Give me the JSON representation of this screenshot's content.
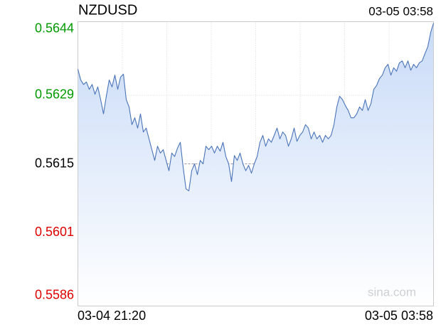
{
  "chart_data": {
    "type": "line",
    "title": "NZDUSD",
    "time": "03-05 03:58",
    "watermark": "sina.com",
    "x_axis_labels": [
      "03-04 21:20",
      "03-05 03:58"
    ],
    "ylim": [
      0.5586,
      0.5644
    ],
    "yticks": [
      0.5586,
      0.5601,
      0.5615,
      0.5629,
      0.5644
    ],
    "reference": 0.5615,
    "colors": {
      "line": "#4a74b8",
      "fill": "#c6d9f7",
      "up": "#009900",
      "down": "#dd0000",
      "flat": "#000000"
    },
    "grid": true,
    "values": [
      0.56343,
      0.56321,
      0.56312,
      0.56317,
      0.56302,
      0.56312,
      0.56292,
      0.56307,
      0.56281,
      0.56252,
      0.56288,
      0.56321,
      0.56307,
      0.56331,
      0.56302,
      0.56327,
      0.56333,
      0.56281,
      0.56266,
      0.5623,
      0.56244,
      0.56223,
      0.56252,
      0.56215,
      0.56223,
      0.56201,
      0.56179,
      0.56157,
      0.56186,
      0.56172,
      0.56179,
      0.56157,
      0.56136,
      0.56172,
      0.56165,
      0.56182,
      0.56194,
      0.56143,
      0.56099,
      0.56095,
      0.56136,
      0.5615,
      0.56128,
      0.56157,
      0.5615,
      0.56186,
      0.56179,
      0.56186,
      0.56172,
      0.56186,
      0.56176,
      0.56194,
      0.56165,
      0.5615,
      0.56114,
      0.56167,
      0.56157,
      0.56172,
      0.5615,
      0.56136,
      0.56147,
      0.56131,
      0.5615,
      0.56165,
      0.56194,
      0.56208,
      0.56186,
      0.56201,
      0.56194,
      0.56208,
      0.56223,
      0.56201,
      0.56215,
      0.56208,
      0.56186,
      0.56201,
      0.56223,
      0.56196,
      0.56208,
      0.56215,
      0.5623,
      0.56223,
      0.56201,
      0.56215,
      0.56201,
      0.56208,
      0.56194,
      0.56208,
      0.56201,
      0.56208,
      0.5623,
      0.56266,
      0.56288,
      0.56281,
      0.56269,
      0.56259,
      0.56244,
      0.56244,
      0.56252,
      0.56266,
      0.56259,
      0.56281,
      0.56259,
      0.56273,
      0.56302,
      0.5631,
      0.56324,
      0.56331,
      0.56346,
      0.56353,
      0.56331,
      0.56346,
      0.56339,
      0.56356,
      0.5636,
      0.56346,
      0.5636,
      0.56341,
      0.56353,
      0.56346,
      0.56356,
      0.5636,
      0.56375,
      0.56389,
      0.56418,
      0.56437
    ]
  }
}
